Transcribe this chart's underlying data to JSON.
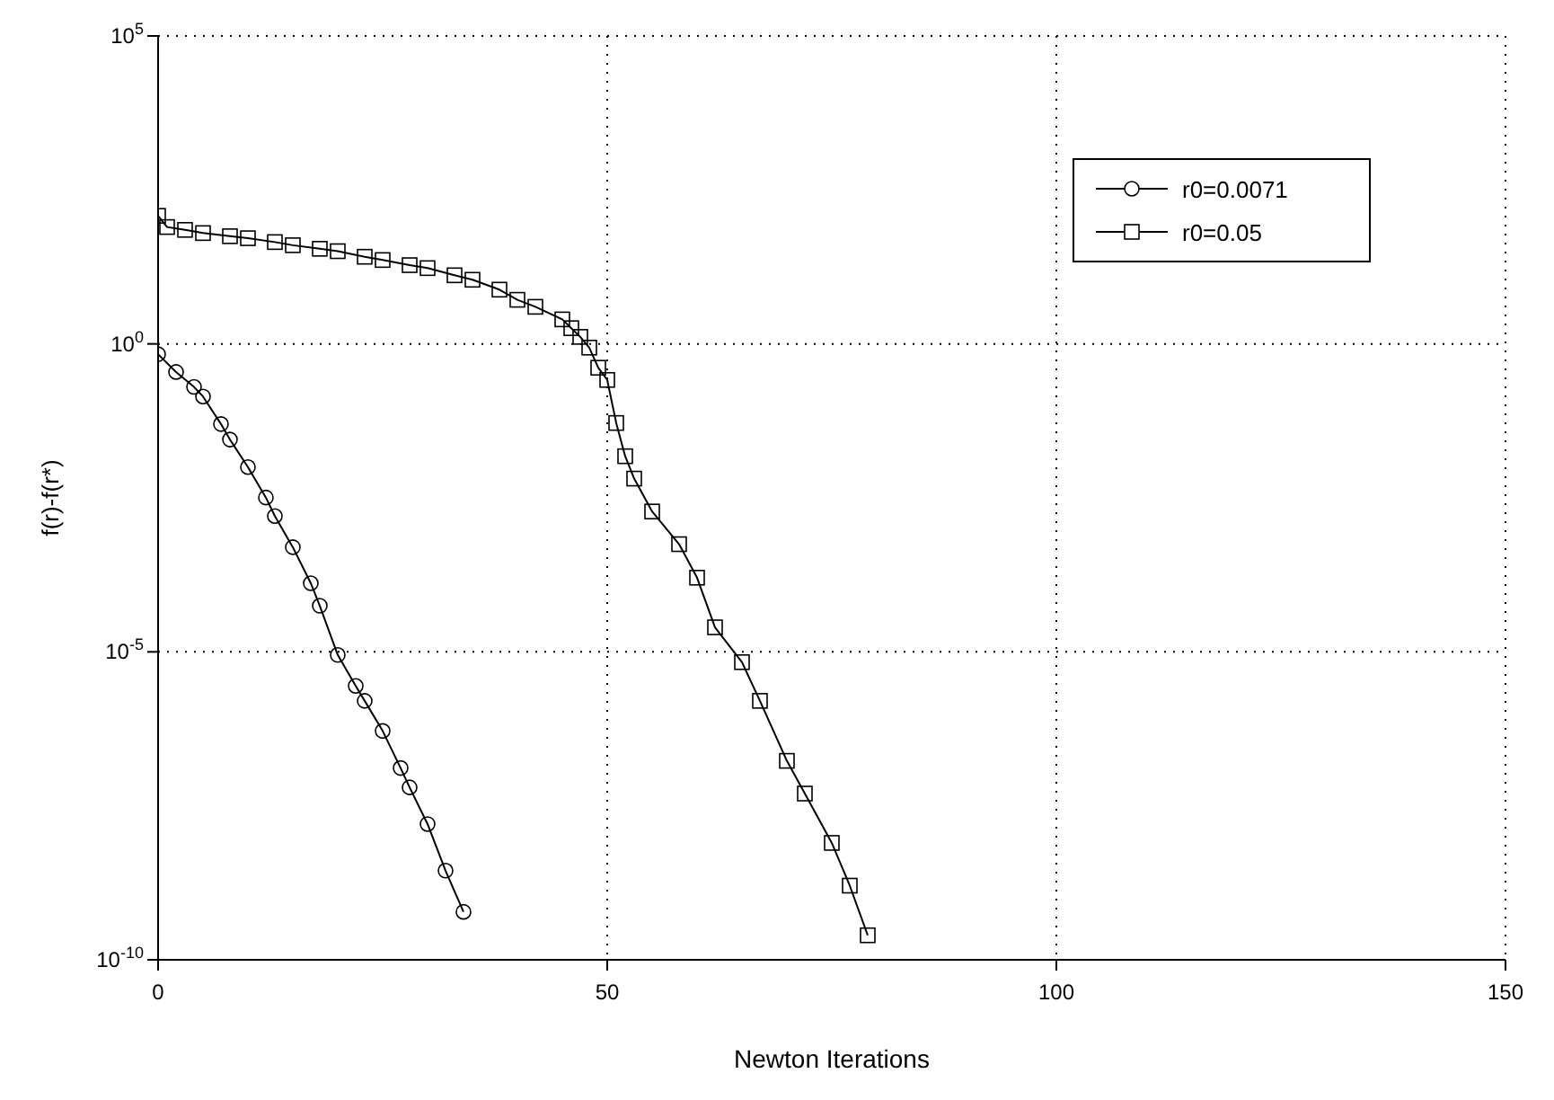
{
  "chart_data": {
    "type": "line",
    "xlabel": "Newton Iterations",
    "ylabel": "f(r)-f(r*)",
    "log": "y",
    "grid": true,
    "legend": "top right",
    "line_style": "solid",
    "xlim": [
      0,
      150
    ],
    "xticks": [
      0,
      50,
      100,
      150
    ],
    "ylim": [
      1e-10,
      100000.0
    ],
    "yticks": [
      {
        "value": 100000.0,
        "label": "10$^{5}$"
      },
      {
        "value": 1,
        "label": "10$^{0}$"
      },
      {
        "value": 1e-05,
        "label": "10$^{-5}$"
      },
      {
        "value": 1e-10,
        "label": "10$^{-10}$"
      }
    ],
    "series": [
      {
        "name": "r0=0.0071",
        "color": "#000000",
        "marker": "circle",
        "x": [
          0,
          2,
          4,
          5,
          7,
          8,
          10,
          12,
          13,
          15,
          17,
          18,
          20,
          22,
          23,
          25,
          27,
          28,
          30,
          32,
          34
        ],
        "values": [
          0.68,
          0.35,
          0.2,
          0.14,
          0.05,
          0.028,
          0.01,
          0.0032,
          0.0016,
          0.0005,
          0.00013,
          5.6e-05,
          8.9e-06,
          2.8e-06,
          1.6e-06,
          5.2e-07,
          1.3e-07,
          6.3e-08,
          1.6e-08,
          2.8e-09,
          6e-10
        ]
      },
      {
        "name": "r0=0.05",
        "color": "#000000",
        "marker": "square",
        "x": [
          0,
          1,
          3,
          5,
          8,
          10,
          13,
          15,
          18,
          20,
          23,
          25,
          28,
          30,
          33,
          35,
          38,
          40,
          42,
          45,
          46,
          47,
          48,
          49,
          50,
          51,
          52,
          53,
          55,
          58,
          60,
          62,
          65,
          67,
          70,
          72,
          75,
          77,
          79
        ],
        "values": [
          120.0,
          79.0,
          71.0,
          63.0,
          56.0,
          52.0,
          45.0,
          40.0,
          35.0,
          32.0,
          26.0,
          23.0,
          19.0,
          17.0,
          13.0,
          11.0,
          7.6,
          5.2,
          4.0,
          2.5,
          1.8,
          1.3,
          0.87,
          0.41,
          0.26,
          0.052,
          0.015,
          0.0065,
          0.0019,
          0.00056,
          0.00016,
          2.5e-05,
          6.8e-06,
          1.6e-06,
          1.7e-07,
          5e-08,
          7.9e-09,
          1.6e-09,
          2.5e-10
        ]
      }
    ]
  }
}
